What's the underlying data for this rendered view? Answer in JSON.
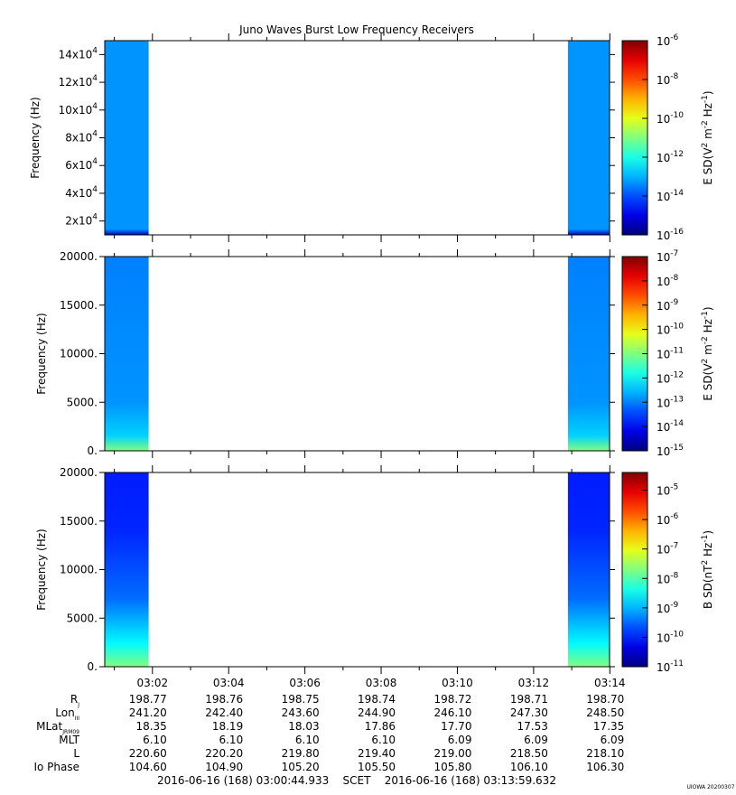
{
  "chart_data": {
    "type": "heatmap",
    "title": "Juno Waves Burst Low Frequency Receivers",
    "x_axis": {
      "tick_labels": [
        "03:02",
        "03:04",
        "03:06",
        "03:08",
        "03:10",
        "03:12",
        "03:14"
      ],
      "tick_minutes": [
        2,
        4,
        6,
        8,
        10,
        12,
        14
      ],
      "range_minutes": [
        0.749,
        13.993
      ],
      "data_intervals_minutes": [
        [
          0.749,
          1.9
        ],
        [
          12.9,
          13.993
        ]
      ]
    },
    "panels": [
      {
        "ylabel": "Frequency (Hz)",
        "yticks": [
          20000,
          40000,
          60000,
          80000,
          100000,
          120000,
          140000
        ],
        "ytick_labels": [
          [
            "2x10",
            "4"
          ],
          [
            "4x10",
            "4"
          ],
          [
            "6x10",
            "4"
          ],
          [
            "8x10",
            "4"
          ],
          [
            "10x10",
            "4"
          ],
          [
            "12x10",
            "4"
          ],
          [
            "14x10",
            "4"
          ]
        ],
        "ylim": [
          10000,
          150000
        ],
        "colorbar": {
          "label_parts": [
            "E SD(V",
            "2",
            " m",
            "-2",
            " Hz",
            "-1",
            ")"
          ],
          "scale": "log",
          "range": [
            -16,
            -6
          ],
          "tick_exponents": [
            -16,
            -14,
            -12,
            -10,
            -8,
            -6
          ]
        },
        "data_level_log": -13.3
      },
      {
        "ylabel": "Frequency (Hz)",
        "yticks": [
          0,
          5000,
          10000,
          15000,
          20000
        ],
        "ytick_labels": [
          "0.",
          "5000.",
          "10000.",
          "15000.",
          "20000."
        ],
        "ylim": [
          0,
          20000
        ],
        "colorbar": {
          "label_parts": [
            "E SD(V",
            "2",
            " m",
            "-2",
            " Hz",
            "-1",
            ")"
          ],
          "scale": "log",
          "range": [
            -15,
            -7
          ],
          "tick_exponents": [
            -15,
            -14,
            -13,
            -12,
            -11,
            -10,
            -9,
            -8,
            -7
          ]
        },
        "data_level_log": -13.0
      },
      {
        "ylabel": "Frequency (Hz)",
        "yticks": [
          0,
          5000,
          10000,
          15000,
          20000
        ],
        "ytick_labels": [
          "0.",
          "5000.",
          "10000.",
          "15000.",
          "20000."
        ],
        "ylim": [
          0,
          20000
        ],
        "colorbar": {
          "label_parts": [
            "B SD(nT",
            "2",
            " Hz",
            "-1",
            ")"
          ],
          "scale": "log",
          "range": [
            -11,
            -4.4
          ],
          "tick_exponents": [
            -11,
            -10,
            -9,
            -8,
            -7,
            -6,
            -5
          ]
        },
        "data_level_log": -10.0
      }
    ],
    "ephemeris": {
      "rows": [
        {
          "label": "R",
          "sub": "J",
          "values": [
            "198.77",
            "198.76",
            "198.75",
            "198.74",
            "198.72",
            "198.71",
            "198.70"
          ]
        },
        {
          "label": "Lon",
          "sub": "III",
          "values": [
            "241.20",
            "242.40",
            "243.60",
            "244.90",
            "246.10",
            "247.30",
            "248.50"
          ]
        },
        {
          "label": "MLat",
          "sub": "JRM09",
          "values": [
            "18.35",
            "18.19",
            "18.03",
            "17.86",
            "17.70",
            "17.53",
            "17.35"
          ]
        },
        {
          "label": "MLT",
          "sub": "",
          "values": [
            "6.10",
            "6.10",
            "6.10",
            "6.10",
            "6.09",
            "6.09",
            "6.09"
          ]
        },
        {
          "label": "L",
          "sub": "",
          "values": [
            "220.60",
            "220.20",
            "219.80",
            "219.40",
            "219.00",
            "218.50",
            "218.10"
          ]
        },
        {
          "label": "Io Phase",
          "sub": "",
          "values": [
            "104.60",
            "104.90",
            "105.20",
            "105.50",
            "105.80",
            "106.10",
            "106.30"
          ]
        }
      ]
    },
    "time_range_text": "2016-06-16 (168) 03:00:44.933    SCET    2016-06-16 (168) 03:13:59.632",
    "credit": "UIOWA 20200307"
  }
}
